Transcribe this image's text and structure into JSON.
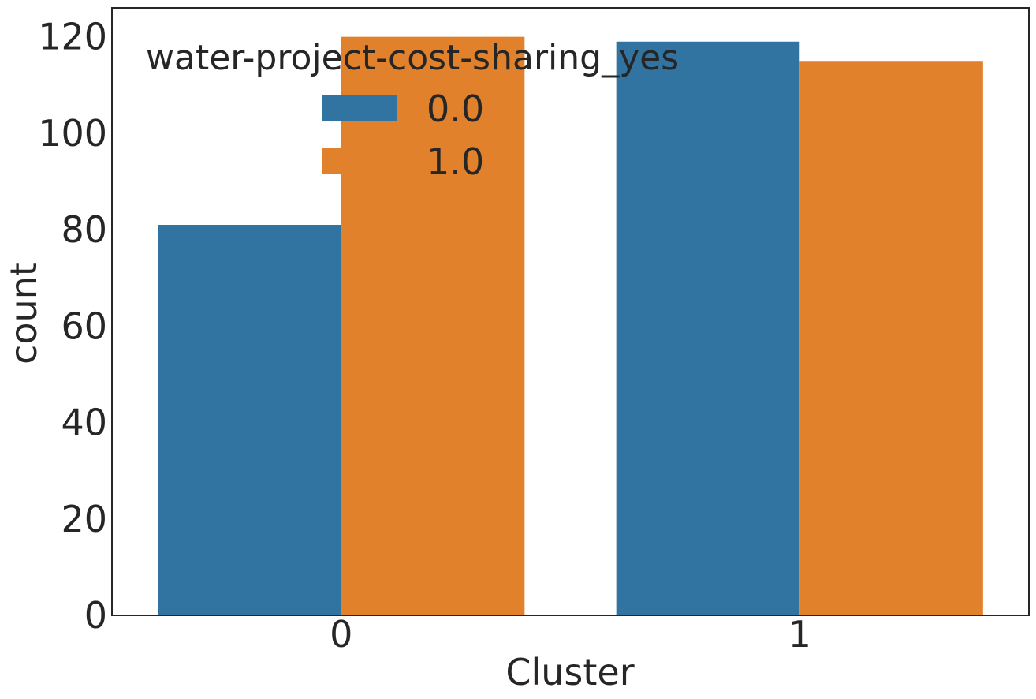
{
  "chart_data": {
    "type": "bar",
    "xlabel": "Cluster",
    "ylabel": "count",
    "categories": [
      "0",
      "1"
    ],
    "ylim": [
      0,
      126
    ],
    "yticks": [
      0,
      20,
      40,
      60,
      80,
      100,
      120
    ],
    "legend": {
      "title": "water-project-cost-sharing_yes",
      "placement": "top-left"
    },
    "series": [
      {
        "name": "0.0",
        "color": "#3274a1",
        "values": [
          81,
          119
        ]
      },
      {
        "name": "1.0",
        "color": "#e1812c",
        "values": [
          120,
          115
        ]
      }
    ],
    "grid": false
  }
}
